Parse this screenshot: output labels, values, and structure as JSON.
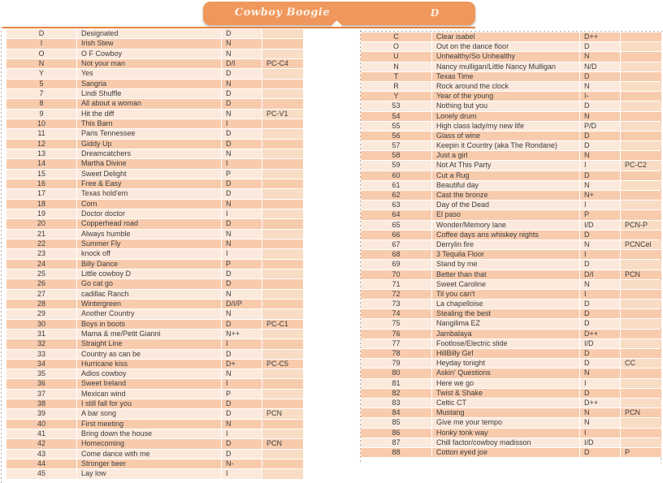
{
  "banner": {
    "title": "Cowboy Boogie",
    "letter": "D"
  },
  "colors": {
    "orange": "#EF975C",
    "border_orange": "#E8823C",
    "band_light": "#FBE9DC",
    "band_dark": "#F8CBAD",
    "band_tag_light": "#F8DCC4",
    "dash_gray": "#ABABAB",
    "cell_text": "#3D3D3D"
  },
  "left_table": {
    "first_band": "light",
    "rows": [
      {
        "id": "D",
        "name": "Designated",
        "code": "D",
        "tag": ""
      },
      {
        "id": "I",
        "name": "Irish Stew",
        "code": "N",
        "tag": ""
      },
      {
        "id": "O",
        "name": "O F Cowboy",
        "code": "N",
        "tag": ""
      },
      {
        "id": "N",
        "name": "Not your man",
        "code": "D/I",
        "tag": "PC-C4"
      },
      {
        "id": "Y",
        "name": "Yes",
        "code": "D",
        "tag": ""
      },
      {
        "id": "5",
        "name": "Sangria",
        "code": "N",
        "tag": ""
      },
      {
        "id": "7",
        "name": "Lindi Shuffle",
        "code": "D",
        "tag": ""
      },
      {
        "id": "8",
        "name": "All about a woman",
        "code": "D",
        "tag": ""
      },
      {
        "id": "9",
        "name": "Hit the diff",
        "code": "N",
        "tag": "PC-V1"
      },
      {
        "id": "10",
        "name": "This Barn",
        "code": "I",
        "tag": ""
      },
      {
        "id": "11",
        "name": "Paris Tennessee",
        "code": "D",
        "tag": ""
      },
      {
        "id": "12",
        "name": "Giddy Up",
        "code": "D",
        "tag": ""
      },
      {
        "id": "13",
        "name": "Dreamcatchers",
        "code": "N",
        "tag": ""
      },
      {
        "id": "14",
        "name": "Martha Divine",
        "code": "I",
        "tag": ""
      },
      {
        "id": "15",
        "name": "Sweet Delight",
        "code": "P",
        "tag": ""
      },
      {
        "id": "16",
        "name": "Free & Easy",
        "code": "D",
        "tag": ""
      },
      {
        "id": "17",
        "name": "Texas hold'em",
        "code": "D",
        "tag": ""
      },
      {
        "id": "18",
        "name": "Corn",
        "code": "N",
        "tag": ""
      },
      {
        "id": "19",
        "name": "Doctor doctor",
        "code": "I",
        "tag": ""
      },
      {
        "id": "20",
        "name": "Copperhead road",
        "code": "D",
        "tag": ""
      },
      {
        "id": "21",
        "name": "Always humble",
        "code": "N",
        "tag": ""
      },
      {
        "id": "22",
        "name": "Summer Fly",
        "code": "N",
        "tag": ""
      },
      {
        "id": "23",
        "name": "knock off",
        "code": "I",
        "tag": ""
      },
      {
        "id": "24",
        "name": "Billy Dance",
        "code": "P",
        "tag": ""
      },
      {
        "id": "25",
        "name": "Little cowboy D",
        "code": "D",
        "tag": ""
      },
      {
        "id": "26",
        "name": "Go cat go",
        "code": "D",
        "tag": ""
      },
      {
        "id": "27",
        "name": "cadillac Ranch",
        "code": "N",
        "tag": ""
      },
      {
        "id": "28",
        "name": "Wintergreen",
        "code": "D/I/P",
        "tag": ""
      },
      {
        "id": "29",
        "name": "Another Country",
        "code": "N",
        "tag": ""
      },
      {
        "id": "30",
        "name": "Boys in boots",
        "code": "D",
        "tag": "PC-C1"
      },
      {
        "id": "31",
        "name": "Mama & me/Petit Gianni",
        "code": "N++",
        "tag": ""
      },
      {
        "id": "32",
        "name": "Straight Line",
        "code": "I",
        "tag": ""
      },
      {
        "id": "33",
        "name": "Country as can be",
        "code": "D",
        "tag": ""
      },
      {
        "id": "34",
        "name": "Hurricane kiss",
        "code": "D+",
        "tag": "PC-C5"
      },
      {
        "id": "35",
        "name": "Adios cowboy",
        "code": "N",
        "tag": ""
      },
      {
        "id": "36",
        "name": "Sweet Ireland",
        "code": "I",
        "tag": ""
      },
      {
        "id": "37",
        "name": "Mexican wind",
        "code": "P",
        "tag": ""
      },
      {
        "id": "38",
        "name": "I still fall for you",
        "code": "D",
        "tag": ""
      },
      {
        "id": "39",
        "name": "A bar song",
        "code": "D",
        "tag": "PCN"
      },
      {
        "id": "40",
        "name": "First meeting",
        "code": "N",
        "tag": ""
      },
      {
        "id": "41",
        "name": "Bring down the house",
        "code": "I",
        "tag": ""
      },
      {
        "id": "42",
        "name": "Homecoming",
        "code": "D",
        "tag": "PCN"
      },
      {
        "id": "43",
        "name": "Come dance with me",
        "code": "D",
        "tag": ""
      },
      {
        "id": "44",
        "name": "Stronger beer",
        "code": "N-",
        "tag": ""
      },
      {
        "id": "45",
        "name": "Lay low",
        "code": "I",
        "tag": ""
      }
    ]
  },
  "right_table": {
    "first_band": "dark",
    "rows": [
      {
        "id": "C",
        "name": "Clear isabel",
        "code": "D++",
        "tag": ""
      },
      {
        "id": "O",
        "name": "Out on the dance floor",
        "code": "D",
        "tag": ""
      },
      {
        "id": "U",
        "name": "Unhealthy/So Unhealthy",
        "code": "N",
        "tag": ""
      },
      {
        "id": "N",
        "name": "Nancy mulligan/Little Nancy Mulligan",
        "code": "N/D",
        "tag": ""
      },
      {
        "id": "T",
        "name": "Texas Time",
        "code": "D",
        "tag": ""
      },
      {
        "id": "R",
        "name": "Rock around the clock",
        "code": "N",
        "tag": ""
      },
      {
        "id": "Y",
        "name": "Year of the young",
        "code": "I-",
        "tag": ""
      },
      {
        "id": "53",
        "name": "Nothing but you",
        "code": "D",
        "tag": ""
      },
      {
        "id": "54",
        "name": "Lonely drum",
        "code": "N",
        "tag": ""
      },
      {
        "id": "55",
        "name": "High class lady/my new life",
        "code": "P/D",
        "tag": ""
      },
      {
        "id": "56",
        "name": "Glass of wine",
        "code": "D",
        "tag": ""
      },
      {
        "id": "57",
        "name": "Keepin it Country (aka The Rondane)",
        "code": "D",
        "tag": ""
      },
      {
        "id": "58",
        "name": "Just a girl",
        "code": "N",
        "tag": ""
      },
      {
        "id": "59",
        "name": "Not At This Party",
        "code": "I",
        "tag": "PC-C2"
      },
      {
        "id": "60",
        "name": "Cut a Rug",
        "code": "D",
        "tag": ""
      },
      {
        "id": "61",
        "name": "Beautiful day",
        "code": "N",
        "tag": ""
      },
      {
        "id": "62",
        "name": "Cast the bronze",
        "code": "N+",
        "tag": ""
      },
      {
        "id": "63",
        "name": "Day of the Dead",
        "code": "I",
        "tag": ""
      },
      {
        "id": "64",
        "name": "El paso",
        "code": "P",
        "tag": ""
      },
      {
        "id": "65",
        "name": "Wonder/Memory lane",
        "code": "I/D",
        "tag": "PCN-P"
      },
      {
        "id": "66",
        "name": "Coffee days ans whiskey nights",
        "code": "D",
        "tag": ""
      },
      {
        "id": "67",
        "name": "Derrylin fire",
        "code": "N",
        "tag": "PCNCel"
      },
      {
        "id": "68",
        "name": "3 Tequila Floor",
        "code": "I",
        "tag": ""
      },
      {
        "id": "69",
        "name": "Stand by me",
        "code": "D",
        "tag": ""
      },
      {
        "id": "70",
        "name": "Better than that",
        "code": "D/I",
        "tag": "PCN"
      },
      {
        "id": "71",
        "name": "Sweet Caroline",
        "code": "N",
        "tag": ""
      },
      {
        "id": "72",
        "name": "Til you can't",
        "code": "I",
        "tag": ""
      },
      {
        "id": "73",
        "name": "La chapelloise",
        "code": "D",
        "tag": ""
      },
      {
        "id": "74",
        "name": "Stealing the best",
        "code": "D",
        "tag": ""
      },
      {
        "id": "75",
        "name": "Nangilima EZ",
        "code": "D",
        "tag": ""
      },
      {
        "id": "76",
        "name": "Jambalaya",
        "code": "D++",
        "tag": ""
      },
      {
        "id": "77",
        "name": "Footlose/Electric slide",
        "code": "I/D",
        "tag": ""
      },
      {
        "id": "78",
        "name": "HillBilly Girl",
        "code": "D",
        "tag": ""
      },
      {
        "id": "79",
        "name": "Heyday tonight",
        "code": "D",
        "tag": "CC"
      },
      {
        "id": "80",
        "name": "Askin' Questions",
        "code": "N",
        "tag": ""
      },
      {
        "id": "81",
        "name": "Here we go",
        "code": "I",
        "tag": ""
      },
      {
        "id": "82",
        "name": "Twist & Shake",
        "code": "D",
        "tag": ""
      },
      {
        "id": "83",
        "name": "Celtic CT",
        "code": "D++",
        "tag": ""
      },
      {
        "id": "84",
        "name": "Mustang",
        "code": "N",
        "tag": "PCN"
      },
      {
        "id": "85",
        "name": "Give me your tempo",
        "code": "N",
        "tag": ""
      },
      {
        "id": "86",
        "name": "Honky tonk way",
        "code": "I",
        "tag": ""
      },
      {
        "id": "87",
        "name": "Chill factor/cowboy madisson",
        "code": "I/D",
        "tag": ""
      },
      {
        "id": "88",
        "name": "Cotton eyed joe",
        "code": "D",
        "tag": "P"
      }
    ]
  }
}
